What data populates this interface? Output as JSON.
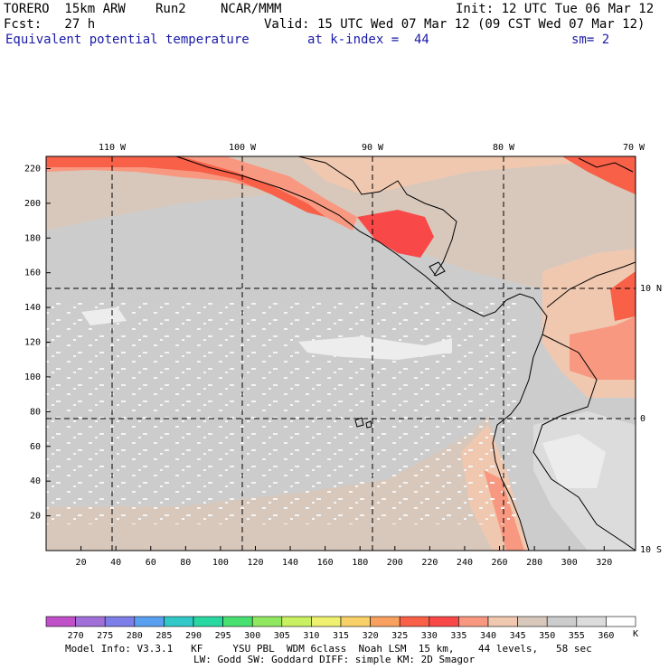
{
  "header": {
    "model": "TORERO  15km ARW",
    "run": "Run2",
    "org": "NCAR/MMM",
    "init": "Init: 12 UTC Tue 06 Mar 12",
    "fcst": "Fcst:   27 h",
    "valid": "Valid: 15 UTC Wed 07 Mar 12 (09 CST Wed 07 Mar 12)",
    "field": "Equivalent potential temperature",
    "kindex": "at k-index =  44",
    "smooth": "sm= 2"
  },
  "map": {
    "lon_labels": [
      "110 W",
      "100 W",
      "90 W",
      "80 W",
      "70 W"
    ],
    "lat_labels": [
      "10 N",
      "0",
      "10 S"
    ],
    "y_ticks": [
      "20",
      "40",
      "60",
      "80",
      "100",
      "120",
      "140",
      "160",
      "180",
      "200",
      "220"
    ],
    "x_ticks": [
      "20",
      "40",
      "60",
      "80",
      "100",
      "120",
      "140",
      "160",
      "180",
      "200",
      "220",
      "240",
      "260",
      "280",
      "300",
      "320"
    ]
  },
  "colorbar": {
    "unit": "K",
    "levels": [
      "270",
      "275",
      "280",
      "285",
      "290",
      "295",
      "300",
      "305",
      "310",
      "315",
      "320",
      "325",
      "330",
      "335",
      "340",
      "345",
      "350",
      "355",
      "360"
    ],
    "colors": [
      "#c050c8",
      "#a070d8",
      "#7e7ee8",
      "#5aa0f0",
      "#30c8c8",
      "#28d8a0",
      "#48e070",
      "#90e860",
      "#c8f060",
      "#f0f070",
      "#f8d068",
      "#f8a060",
      "#f86048",
      "#f84848",
      "#f89880",
      "#f0c8b0",
      "#d8c8bc",
      "#cccccc",
      "#dcdcdc",
      "#ffffff"
    ]
  },
  "footer": {
    "line1": "Model Info: V3.3.1   KF     YSU PBL  WDM 6class  Noah LSM  15 km,    44 levels,   58 sec",
    "line2": "LW: Godd SW: Goddard DIFF: simple KM: 2D Smagor"
  }
}
